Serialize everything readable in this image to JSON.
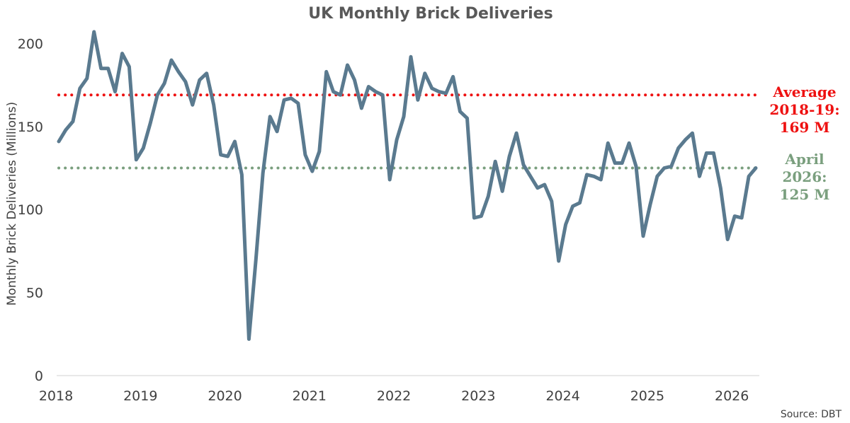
{
  "chart_data": {
    "type": "line",
    "title": "UK Monthly Brick Deliveries",
    "ylabel": "Monthly Brick Deliveries (Millions)",
    "xlabel": "",
    "ylim": [
      0,
      210
    ],
    "yticks": [
      0,
      50,
      100,
      150,
      200
    ],
    "xticks": [
      "2018",
      "2019",
      "2020",
      "2021",
      "2022",
      "2023",
      "2024",
      "2025",
      "2026"
    ],
    "x_start": "2018-01",
    "x_end": "2026-04",
    "grid": false,
    "series": [
      {
        "color": "#5a7a8f",
        "values": [
          141,
          148,
          153,
          173,
          179,
          207,
          185,
          185,
          171,
          194,
          186,
          130,
          137,
          152,
          169,
          176,
          190,
          183,
          177,
          163,
          178,
          182,
          163,
          133,
          132,
          141,
          121,
          22,
          70,
          122,
          156,
          147,
          166,
          167,
          164,
          133,
          123,
          135,
          183,
          171,
          169,
          187,
          178,
          161,
          174,
          171,
          169,
          118,
          142,
          156,
          192,
          166,
          182,
          173,
          171,
          170,
          180,
          159,
          155,
          95,
          96,
          108,
          129,
          111,
          132,
          146,
          127,
          120,
          113,
          115,
          105,
          69,
          91,
          102,
          104,
          121,
          120,
          118,
          140,
          128,
          128,
          140,
          126,
          84,
          103,
          120,
          125,
          126,
          137,
          142,
          146,
          120,
          134,
          134,
          113,
          82,
          96,
          95,
          120,
          125
        ]
      }
    ],
    "reference_lines": [
      {
        "value": 169,
        "color": "#ee1111",
        "label_lines": [
          "Average",
          "2018-19:",
          "169 M"
        ]
      },
      {
        "value": 125,
        "color": "#7a9f7e",
        "label_lines": [
          "April",
          "2026:",
          "125 M"
        ]
      }
    ],
    "source": "Source: DBT"
  }
}
